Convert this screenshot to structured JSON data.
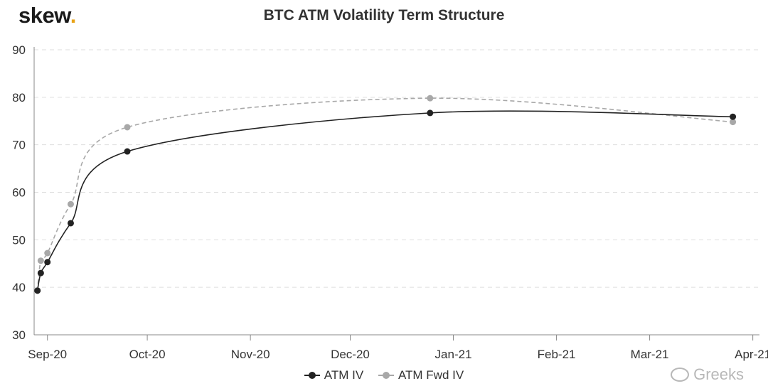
{
  "header": {
    "logo_text": "skew",
    "logo_dot": ".",
    "title": "BTC ATM Volatility Term Structure"
  },
  "colors": {
    "atm_iv": "#222222",
    "atm_fwd_iv": "#a8a8a8",
    "grid": "#dddddd",
    "logo_dot": "#e8a317"
  },
  "chart_data": {
    "type": "line",
    "title": "BTC ATM Volatility Term Structure",
    "xlabel": "",
    "ylabel": "",
    "ylim": [
      30,
      90
    ],
    "yticks": [
      30,
      40,
      50,
      60,
      70,
      80,
      90
    ],
    "xlim": [
      "2020-08-28",
      "2021-04-03"
    ],
    "xticks": [
      {
        "date": "2020-09-01",
        "label": "Sep-20"
      },
      {
        "date": "2020-10-01",
        "label": "Oct-20"
      },
      {
        "date": "2020-11-01",
        "label": "Nov-20"
      },
      {
        "date": "2020-12-01",
        "label": "Dec-20"
      },
      {
        "date": "2021-01-01",
        "label": "Jan-21"
      },
      {
        "date": "2021-02-01",
        "label": "Feb-21"
      },
      {
        "date": "2021-03-01",
        "label": "Mar-21"
      },
      {
        "date": "2021-04-01",
        "label": "Apr-21"
      }
    ],
    "grid": "horizontal dashed",
    "legend_position": "bottom",
    "series": [
      {
        "name": "ATM IV",
        "style": "solid",
        "points": [
          {
            "x": "2020-08-29",
            "y": 39.3
          },
          {
            "x": "2020-08-30",
            "y": 43.0
          },
          {
            "x": "2020-09-01",
            "y": 45.3
          },
          {
            "x": "2020-09-08",
            "y": 53.5
          },
          {
            "x": "2020-09-25",
            "y": 68.6
          },
          {
            "x": "2020-12-25",
            "y": 76.7
          },
          {
            "x": "2021-03-26",
            "y": 75.9
          }
        ]
      },
      {
        "name": "ATM Fwd IV",
        "style": "dashed",
        "points": [
          {
            "x": "2020-08-29",
            "y": 39.3
          },
          {
            "x": "2020-08-30",
            "y": 45.6
          },
          {
            "x": "2020-09-01",
            "y": 47.2
          },
          {
            "x": "2020-09-08",
            "y": 57.5
          },
          {
            "x": "2020-09-25",
            "y": 73.7
          },
          {
            "x": "2020-12-25",
            "y": 79.8
          },
          {
            "x": "2021-03-26",
            "y": 74.8
          }
        ]
      }
    ]
  },
  "legend": {
    "items": [
      "ATM IV",
      "ATM Fwd IV"
    ]
  },
  "watermark": {
    "text": "Greeks"
  }
}
